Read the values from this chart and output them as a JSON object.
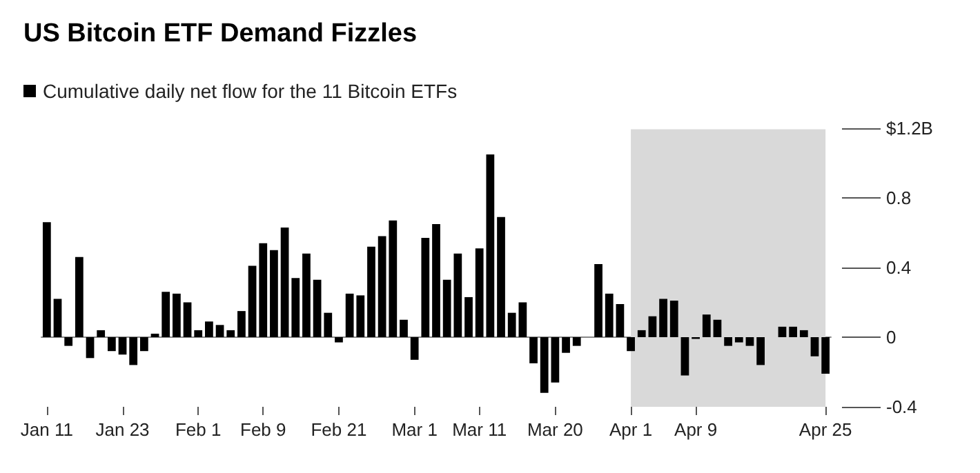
{
  "chart_data": {
    "type": "bar",
    "title": "US Bitcoin ETF Demand Fizzles",
    "categories": [
      "Jan 11",
      null,
      null,
      null,
      null,
      null,
      null,
      "Jan 23",
      null,
      null,
      null,
      null,
      null,
      null,
      "Feb 1",
      null,
      null,
      null,
      null,
      null,
      "Feb 9",
      null,
      null,
      null,
      null,
      null,
      null,
      "Feb 21",
      null,
      null,
      null,
      null,
      null,
      null,
      "Mar 1",
      null,
      null,
      null,
      null,
      null,
      "Mar 11",
      null,
      null,
      null,
      null,
      null,
      null,
      "Mar 20",
      null,
      null,
      null,
      null,
      null,
      null,
      "Apr 1",
      null,
      null,
      null,
      null,
      null,
      "Apr 9",
      null,
      null,
      null,
      null,
      null,
      null,
      null,
      null,
      null,
      null,
      null,
      "Apr 25"
    ],
    "series": [
      {
        "name": "Cumulative daily net flow for the 11 Bitcoin ETFs",
        "color": "#000000",
        "values": [
          0.66,
          0.22,
          -0.05,
          0.46,
          -0.12,
          0.04,
          -0.08,
          -0.1,
          -0.16,
          -0.08,
          0.02,
          0.26,
          0.25,
          0.2,
          0.04,
          0.09,
          0.07,
          0.04,
          0.15,
          0.41,
          0.54,
          0.5,
          0.63,
          0.34,
          0.48,
          0.33,
          0.14,
          -0.03,
          0.25,
          0.24,
          0.52,
          0.58,
          0.67,
          0.1,
          -0.13,
          0.57,
          0.65,
          0.33,
          0.48,
          0.23,
          0.51,
          1.05,
          0.69,
          0.14,
          0.2,
          -0.15,
          -0.32,
          -0.26,
          -0.09,
          -0.05,
          0,
          0.42,
          0.25,
          0.19,
          -0.08,
          0.04,
          0.12,
          0.22,
          0.21,
          -0.22,
          -0.01,
          0.13,
          0.1,
          -0.05,
          -0.03,
          -0.05,
          -0.16,
          0,
          0.06,
          0.06,
          0.04,
          -0.11,
          -0.21
        ]
      }
    ],
    "ylim": [
      -0.4,
      1.2
    ],
    "yticks": [
      -0.4,
      0,
      0.4,
      0.8,
      {
        "value": 1.2,
        "label": "$1.2B"
      }
    ],
    "bands": [
      {
        "axis": "x",
        "from": "Apr 1",
        "to": "Apr 25",
        "color": "#d9d9d9"
      }
    ],
    "grid": "y",
    "legend": "top left"
  }
}
